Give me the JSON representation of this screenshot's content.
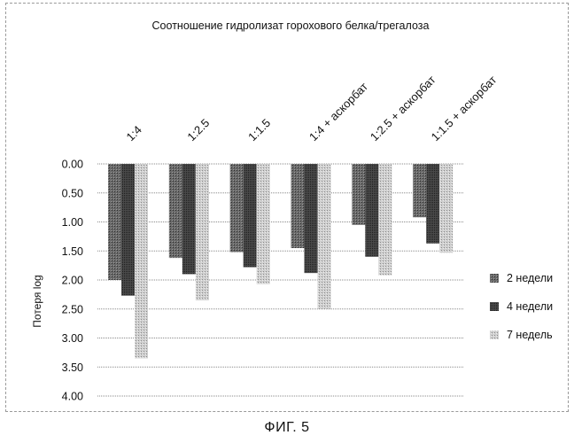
{
  "chart_data": {
    "type": "bar",
    "title": "Соотношение гидролизат горохового белка/трегалоза",
    "ylabel": "Потеря log",
    "xlabel": "",
    "categories": [
      "1:4",
      "1:2.5",
      "1:1.5",
      "1:4 + аскорбат",
      "1:2.5 + аскорбат",
      "1:1.5 + аскорбат"
    ],
    "series": [
      {
        "name": "2 недели",
        "values": [
          2.0,
          1.62,
          1.52,
          1.45,
          1.05,
          0.92
        ],
        "color": "#5a5a5a"
      },
      {
        "name": "4 недели",
        "values": [
          2.27,
          1.9,
          1.78,
          1.88,
          1.6,
          1.37
        ],
        "color": "#3a3a3a"
      },
      {
        "name": "7 недель",
        "values": [
          3.35,
          2.35,
          2.07,
          2.5,
          1.92,
          1.53
        ],
        "color": "#b8b8b8"
      }
    ],
    "yticks": [
      "0.00",
      "0.50",
      "1.00",
      "1.50",
      "2.00",
      "2.50",
      "3.00",
      "3.50",
      "4.00"
    ],
    "ylim": [
      0,
      4
    ],
    "y_inverted": true,
    "category_labels_position": "top",
    "grid": true,
    "legend_position": "right"
  },
  "caption": "ФИГ. 5"
}
